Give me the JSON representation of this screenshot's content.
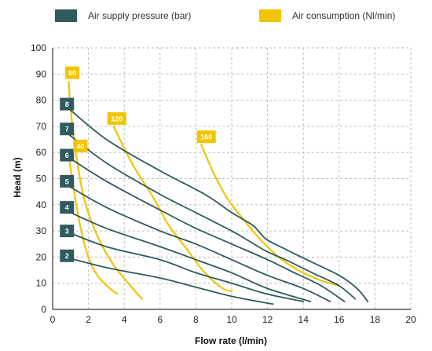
{
  "chart_data": {
    "type": "line",
    "xlabel": "Flow rate (l/min)",
    "ylabel": "Head (m)",
    "xlim": [
      0,
      20
    ],
    "ylim": [
      0,
      100
    ],
    "xticks": [
      0,
      2,
      4,
      6,
      8,
      10,
      12,
      14,
      16,
      18,
      20
    ],
    "yticks": [
      0,
      10,
      20,
      30,
      40,
      50,
      60,
      70,
      80,
      90,
      100
    ],
    "grid": true,
    "legend": [
      {
        "label": "Air supply pressure (bar)",
        "color": "#2f5a5e"
      },
      {
        "label": "Air consumption (Nl/min)",
        "color": "#f2c400"
      }
    ],
    "pressure_series": [
      {
        "name": "8",
        "label_at": [
          0.45,
          78.5
        ],
        "x": [
          0.7,
          3,
          6,
          8.5,
          10,
          11.2,
          11.9,
          13,
          14.5,
          16,
          17,
          17.6
        ],
        "y": [
          78,
          65,
          53,
          44,
          37,
          32,
          27,
          23,
          18,
          13,
          8,
          3
        ]
      },
      {
        "name": "7",
        "label_at": [
          0.45,
          69
        ],
        "x": [
          0.7,
          3,
          6,
          8,
          10,
          11,
          12,
          13,
          14.5,
          16,
          16.9
        ],
        "y": [
          68,
          56,
          44,
          37,
          30,
          26,
          22,
          19,
          14,
          9,
          4
        ]
      },
      {
        "name": "6",
        "label_at": [
          0.45,
          59
        ],
        "x": [
          0.7,
          3,
          6,
          8,
          10,
          12,
          13.5,
          15,
          16.3
        ],
        "y": [
          59,
          49,
          38,
          31,
          25,
          19,
          14,
          9,
          3
        ]
      },
      {
        "name": "5",
        "label_at": [
          0.45,
          49
        ],
        "x": [
          0.7,
          3,
          6,
          8,
          10,
          12,
          14,
          15.5
        ],
        "y": [
          48,
          39,
          30,
          25,
          19,
          13,
          8,
          3
        ]
      },
      {
        "name": "4",
        "label_at": [
          0.45,
          39
        ],
        "x": [
          0.7,
          3,
          6,
          8,
          10,
          12,
          14.4
        ],
        "y": [
          38,
          31,
          24,
          19,
          14,
          8,
          3
        ]
      },
      {
        "name": "3",
        "label_at": [
          0.45,
          30
        ],
        "x": [
          0.7,
          3,
          6,
          8,
          10,
          11.9,
          14
        ],
        "y": [
          30,
          24,
          19,
          14,
          10,
          6,
          3
        ]
      },
      {
        "name": "2",
        "label_at": [
          0.45,
          20.5
        ],
        "x": [
          0.7,
          3,
          6,
          8,
          10,
          12.3
        ],
        "y": [
          20,
          16,
          12,
          8.5,
          5,
          2
        ]
      }
    ],
    "consumption_series": [
      {
        "name": "80",
        "label_at": [
          0.75,
          90.5
        ],
        "x": [
          0.9,
          1.0,
          1.3,
          1.7,
          2.2,
          2.8,
          3.4,
          4.1,
          4.6,
          5.0
        ],
        "y": [
          87,
          77,
          60,
          44,
          33,
          24,
          17,
          11,
          7,
          4
        ]
      },
      {
        "name": "40",
        "label_at": [
          1.2,
          62.5
        ],
        "x": [
          0.9,
          1.2,
          1.6,
          2.0,
          2.5,
          3.2,
          3.6
        ],
        "y": [
          59,
          45,
          30,
          20,
          13,
          8,
          6
        ]
      },
      {
        "name": "120",
        "label_at": [
          3.1,
          73
        ],
        "x": [
          3.4,
          4.5,
          5.6,
          6.5,
          7.5,
          8.5,
          9.5,
          10.0
        ],
        "y": [
          70,
          55,
          43,
          32,
          23,
          14,
          8,
          7
        ]
      },
      {
        "name": "160",
        "label_at": [
          8.1,
          66
        ],
        "x": [
          8.3,
          9.0,
          9.8,
          10.7,
          11.7,
          12.8,
          14.0,
          15.0,
          16.0
        ],
        "y": [
          63,
          52,
          42,
          34,
          26,
          19,
          14,
          11,
          9
        ]
      }
    ]
  }
}
